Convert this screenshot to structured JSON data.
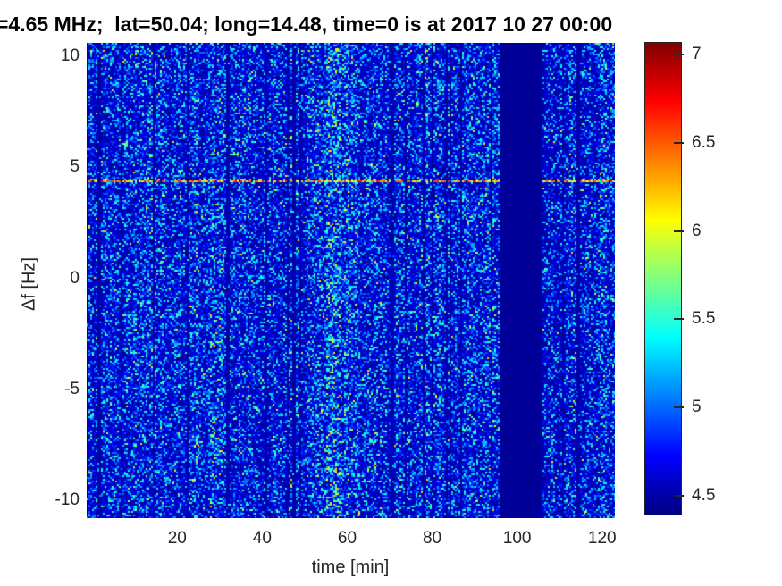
{
  "chart_data": {
    "type": "heatmap",
    "title": "=4.65 MHz;  lat=50.04; long=14.48, time=0 is at 2017 10 27 00:00",
    "xlabel": "time [min]",
    "ylabel": "Δf [Hz]",
    "xlim": [
      -1.3,
      123
    ],
    "ylim": [
      -10.8,
      10.6
    ],
    "xticks": [
      20,
      40,
      60,
      80,
      100,
      120
    ],
    "yticks": [
      10,
      5,
      0,
      -5,
      -10
    ],
    "grid": false,
    "legend": false,
    "colormap": "jet",
    "color_limits": [
      4.39,
      7.07
    ],
    "colorbar": {
      "position": "right",
      "ticks": [
        7,
        6.5,
        6,
        5.5,
        5,
        4.5
      ]
    },
    "features": {
      "noise_floor": {
        "value_typical": 4.6,
        "value_max": 5.7,
        "description": "dense blue speckle noise with cyan flecks covering the whole map, organized in vertical columns"
      },
      "spectral_line": {
        "delta_f_hz": 4.4,
        "time_min": [
          0,
          123
        ],
        "value_range": [
          5.8,
          6.8
        ],
        "description": "dashed horizontal yellow-orange spectral line just below the 5 Hz tick"
      },
      "gap_band": {
        "time_min": [
          96,
          106
        ],
        "value": 4.45,
        "description": "solid dark-blue vertical band with no speckle and no spectral line (data gap)"
      },
      "bright_band": {
        "time_min": [
          55,
          63
        ],
        "description": "vertical band of slightly enhanced speckle brightness"
      },
      "dark_streaks": {
        "description": "thin dark vertical streaks scattered irregularly across the map"
      }
    }
  },
  "colors": {
    "background": "#ffffff",
    "title_text": "#000000",
    "tick_text": "#262626",
    "colorbar_border": "#262626"
  }
}
